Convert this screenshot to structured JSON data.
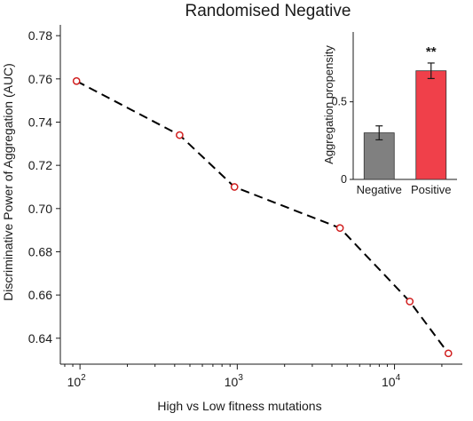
{
  "chart_data": [
    {
      "type": "line",
      "title": "Randomised Negative",
      "xlabel": "High vs Low fitness mutations",
      "ylabel": "Discriminative Power of Aggregation (AUC)",
      "xscale": "log",
      "xlim": [
        75,
        27000
      ],
      "ylim": [
        0.628,
        0.785
      ],
      "yticks": [
        0.64,
        0.66,
        0.68,
        0.7,
        0.72,
        0.74,
        0.76,
        0.78
      ],
      "ytick_labels": [
        "0.64",
        "0.66",
        "0.68",
        "0.70",
        "0.72",
        "0.74",
        "0.76",
        "0.78"
      ],
      "xticks": [
        {
          "value": 100,
          "base": "10",
          "exp": "2"
        },
        {
          "value": 1000,
          "base": "10",
          "exp": "3"
        },
        {
          "value": 10000,
          "base": "10",
          "exp": "4"
        }
      ],
      "x": [
        95,
        430,
        960,
        4500,
        12500,
        22000
      ],
      "y": [
        0.759,
        0.734,
        0.71,
        0.691,
        0.657,
        0.633
      ],
      "line_style": "dashed",
      "line_color": "#000000",
      "marker": "open-circle",
      "marker_color": "#d11f1f",
      "grid": false
    },
    {
      "type": "bar",
      "categories": [
        "Negative",
        "Positive"
      ],
      "values": [
        0.3,
        0.7
      ],
      "errors": [
        0.045,
        0.05
      ],
      "colors": [
        "#808080",
        "#f0404a"
      ],
      "ylabel": "Aggregation propensity",
      "ylim": [
        0,
        0.95
      ],
      "yticks": [
        0,
        0.5
      ],
      "ytick_labels": [
        "0",
        "0.5"
      ],
      "annotation": "**",
      "annotation_over": "Positive",
      "grid": false
    }
  ]
}
